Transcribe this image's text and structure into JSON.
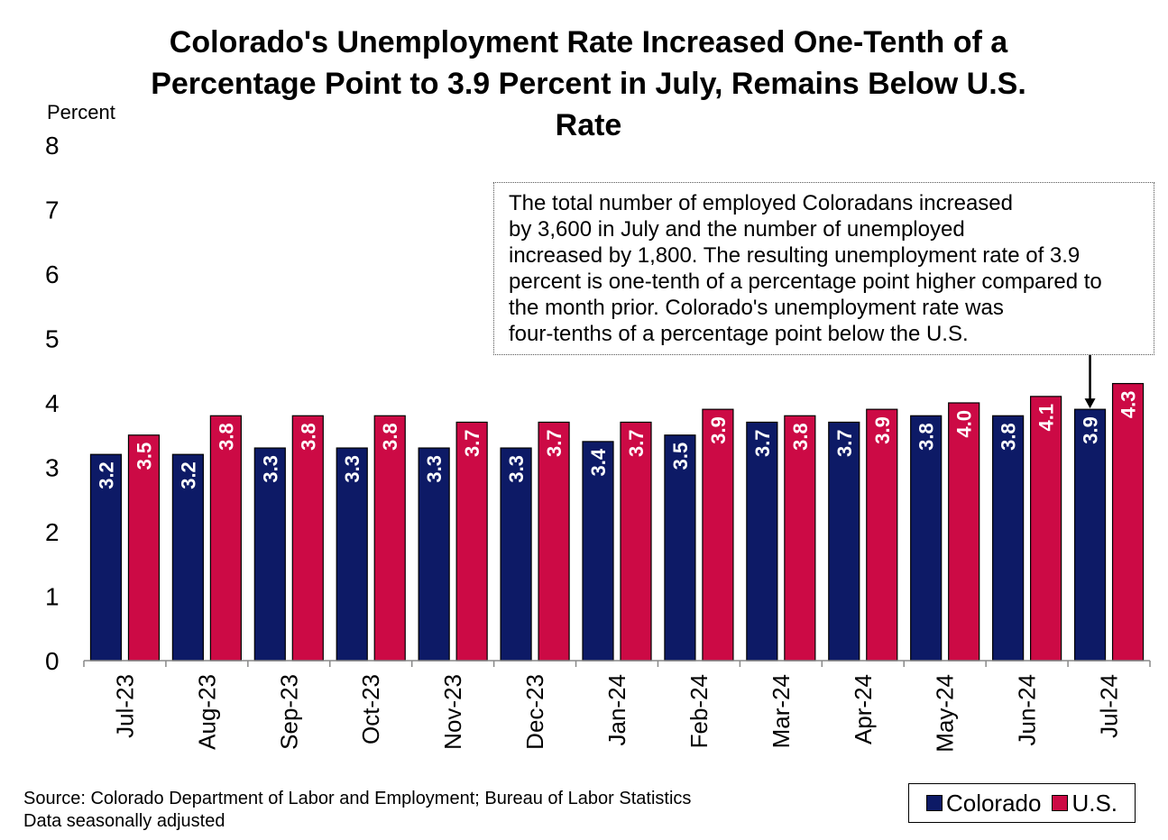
{
  "chart_data": {
    "type": "bar",
    "title": "Colorado's Unemployment Rate Increased One-Tenth of a Percentage Point to 3.9 Percent in July, Remains Below U.S. Rate",
    "ylabel": "Percent",
    "xlabel": "",
    "ylim": [
      0,
      8
    ],
    "yticks": [
      0,
      1,
      2,
      3,
      4,
      5,
      6,
      7,
      8
    ],
    "grid": false,
    "legend_position": "bottom-right",
    "categories": [
      "Jul-23",
      "Aug-23",
      "Sep-23",
      "Oct-23",
      "Nov-23",
      "Dec-23",
      "Jan-24",
      "Feb-24",
      "Mar-24",
      "Apr-24",
      "May-24",
      "Jun-24",
      "Jul-24"
    ],
    "series": [
      {
        "name": "Colorado",
        "color": "#0d1a66",
        "values": [
          3.2,
          3.2,
          3.3,
          3.3,
          3.3,
          3.3,
          3.4,
          3.5,
          3.7,
          3.7,
          3.8,
          3.8,
          3.9
        ]
      },
      {
        "name": "U.S.",
        "color": "#cc0a45",
        "values": [
          3.5,
          3.8,
          3.8,
          3.8,
          3.7,
          3.7,
          3.7,
          3.9,
          3.8,
          3.9,
          4.0,
          4.1,
          4.3
        ]
      }
    ],
    "annotation": "The total number of employed Coloradans increased\nby 3,600 in July and the number of unemployed\nincreased by 1,800. The resulting unemployment rate of 3.9\npercent is one-tenth of a percentage point higher compared to\nthe month prior. Colorado's unemployment rate was\nfour-tenths of a percentage point below the U.S.",
    "annotation_target": "Jul-24 Colorado"
  },
  "source_note": "Source: Colorado Department of Labor and Employment; Bureau of Labor Statistics\nData seasonally adjusted"
}
